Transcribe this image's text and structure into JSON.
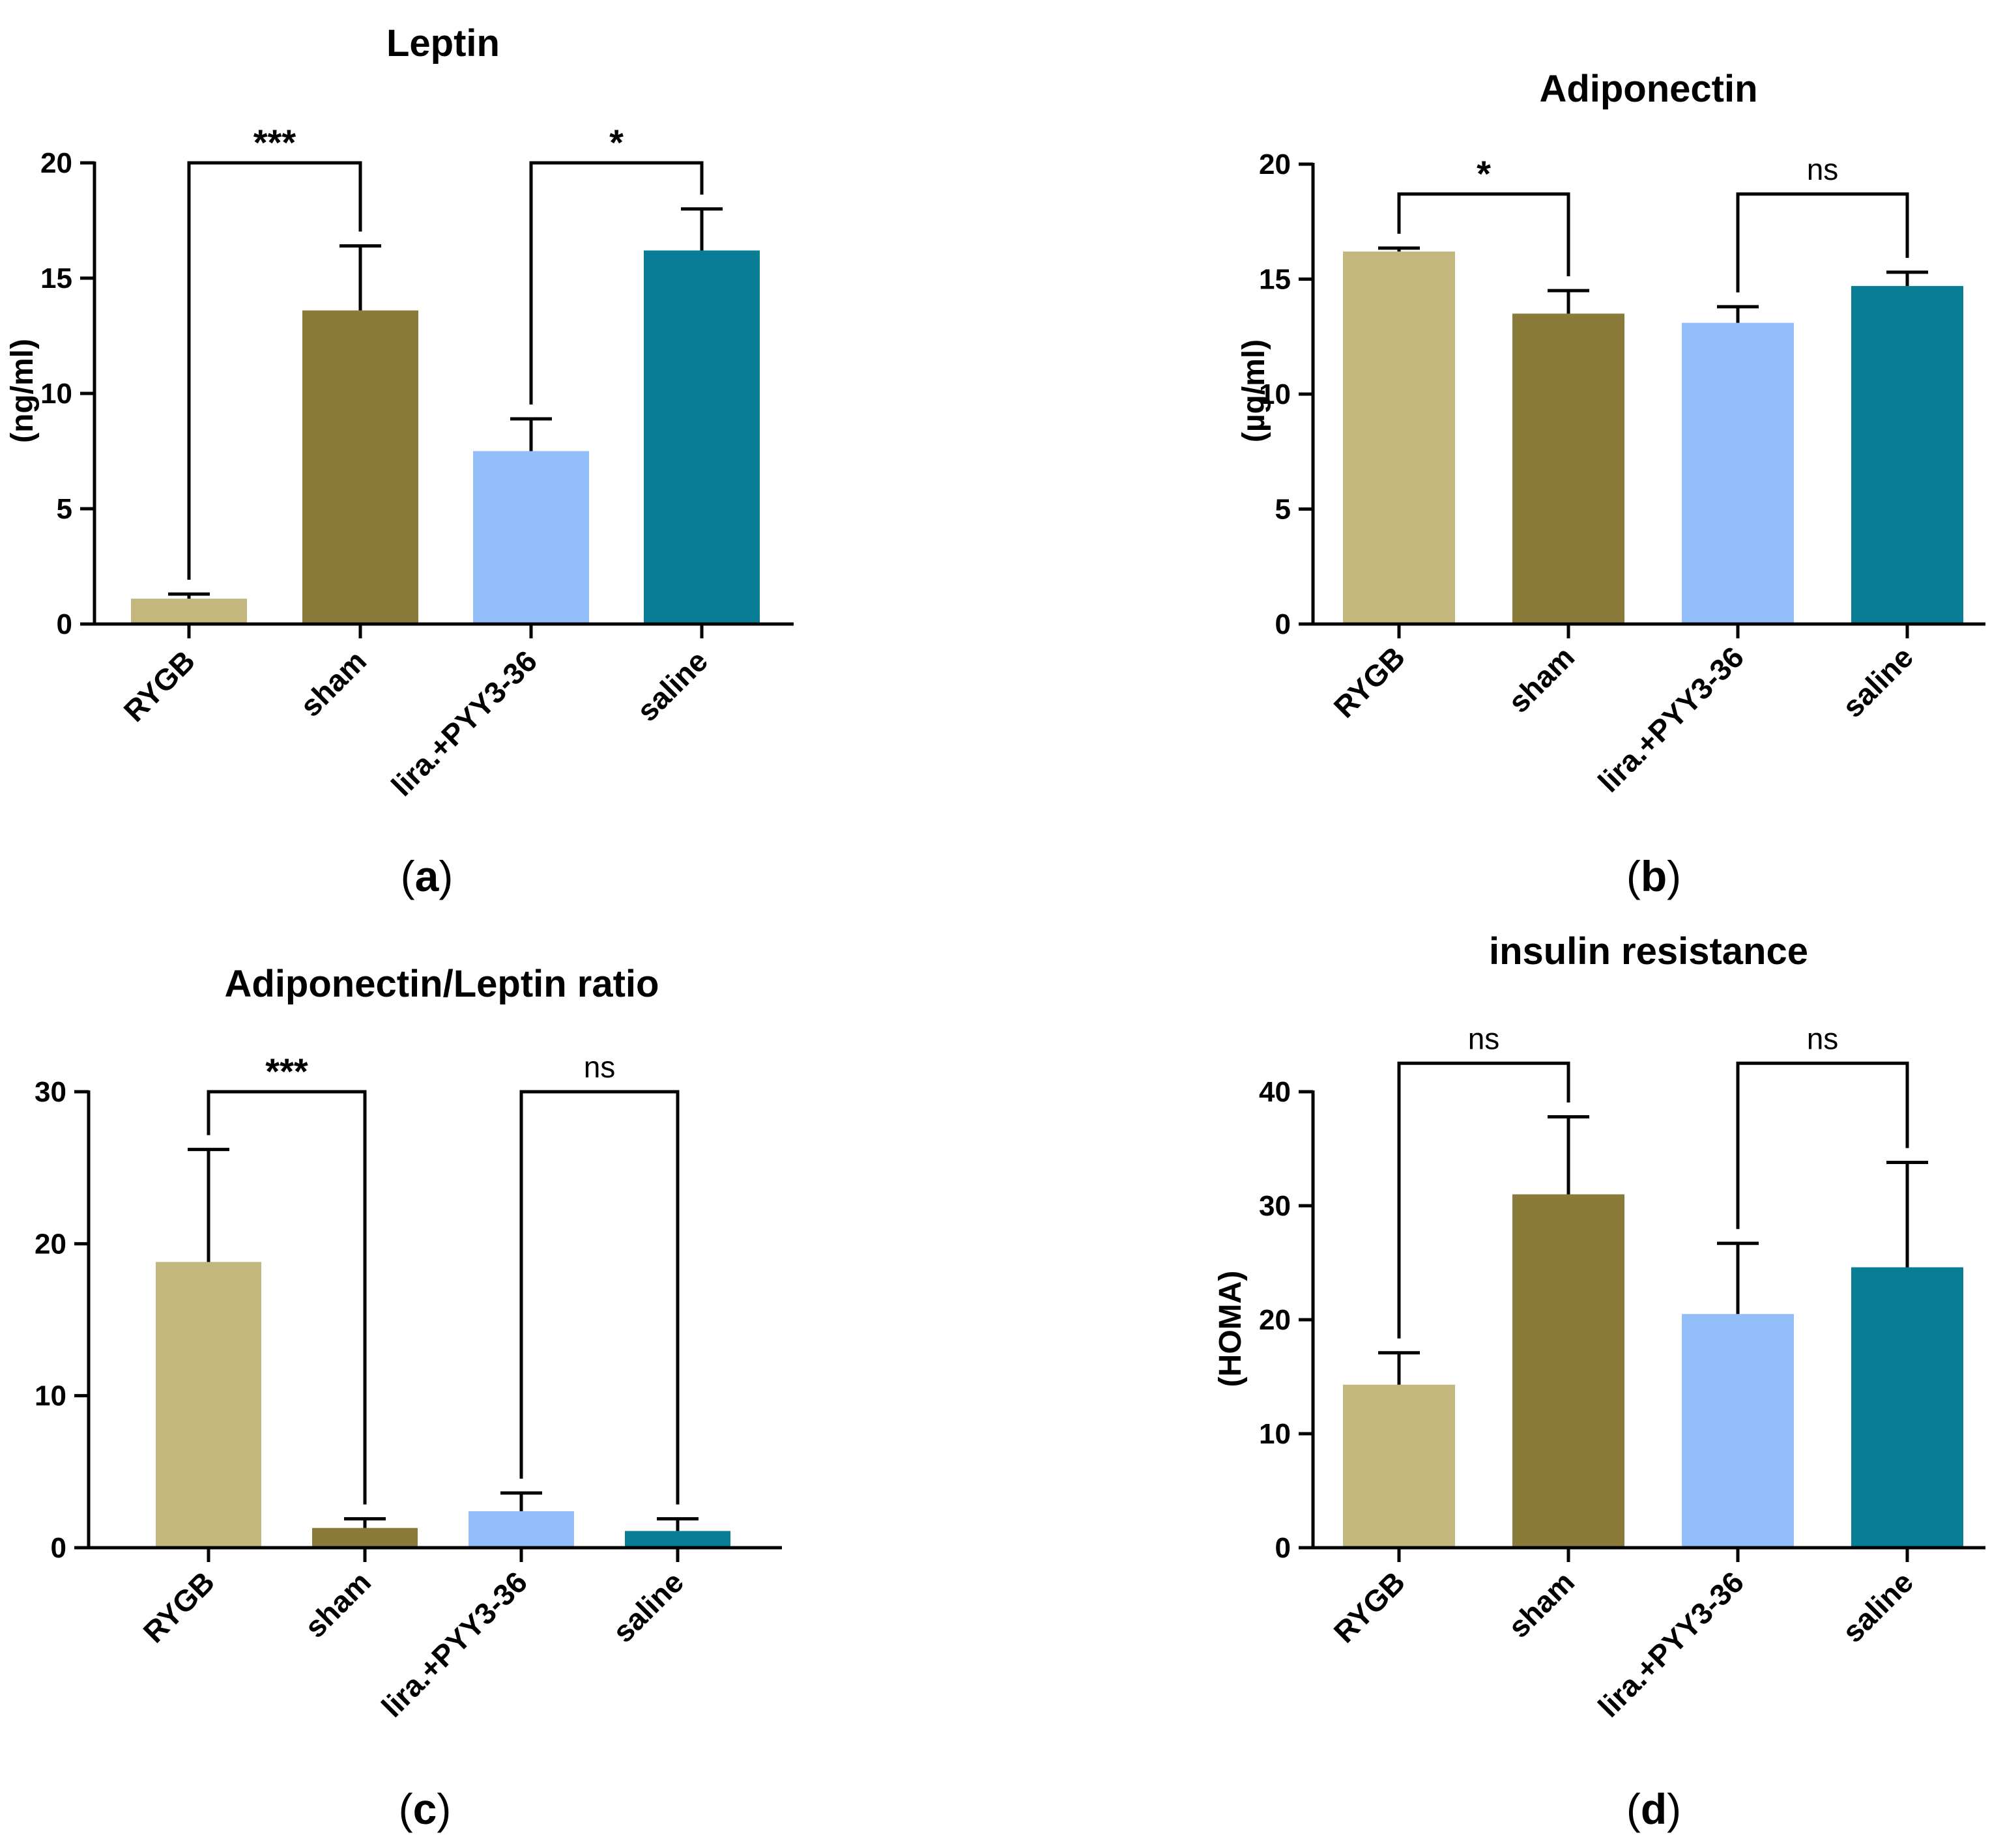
{
  "chart_data": [
    {
      "id": "a",
      "panel_label": "a",
      "type": "bar",
      "title": "Leptin",
      "ylabel": "(ng/ml)",
      "categories": [
        "RYGB",
        "sham",
        "lira.+PYY3-36",
        "saline"
      ],
      "values": [
        1.1,
        13.6,
        7.5,
        16.2
      ],
      "errors": [
        0.2,
        2.8,
        1.4,
        1.8
      ],
      "colors": [
        "#c3b77d",
        "#8b7b3a",
        "#92bffa",
        "#087d95"
      ],
      "ylim": [
        0,
        20
      ],
      "yticks": [
        "0",
        "5",
        "10",
        "15",
        "20"
      ],
      "ytick_values": [
        0,
        5,
        10,
        15,
        20
      ],
      "comparisons": [
        {
          "from": 0,
          "to": 1,
          "label": "***",
          "y": 20
        },
        {
          "from": 2,
          "to": 3,
          "label": "*",
          "y": 20
        }
      ]
    },
    {
      "id": "b",
      "panel_label": "b",
      "type": "bar",
      "title": "Adiponectin",
      "ylabel": "(µg/ml)",
      "categories": [
        "RYGB",
        "sham",
        "lira.+PYY3-36",
        "saline"
      ],
      "values": [
        16.2,
        13.5,
        13.1,
        14.7
      ],
      "errors": [
        0.15,
        1.0,
        0.7,
        0.6
      ],
      "colors": [
        "#c3b77d",
        "#8b7b3a",
        "#92bffa",
        "#087d95"
      ],
      "ylim": [
        0,
        20
      ],
      "yticks": [
        "0",
        "5",
        "10",
        "15",
        "20"
      ],
      "ytick_values": [
        0,
        5,
        10,
        15,
        20
      ],
      "comparisons": [
        {
          "from": 0,
          "to": 1,
          "label": "*",
          "y": 18.7
        },
        {
          "from": 2,
          "to": 3,
          "label": "ns",
          "y": 18.7
        }
      ]
    },
    {
      "id": "c",
      "panel_label": "c",
      "type": "bar",
      "title": "Adiponectin/Leptin ratio",
      "ylabel": "",
      "categories": [
        "RYGB",
        "sham",
        "lira.+PYY3-36",
        "saline"
      ],
      "values": [
        18.8,
        1.3,
        2.4,
        1.1
      ],
      "errors": [
        7.4,
        0.6,
        1.2,
        0.8
      ],
      "colors": [
        "#c3b77d",
        "#8b7b3a",
        "#92bffa",
        "#087d95"
      ],
      "ylim": [
        0,
        30
      ],
      "yticks": [
        "0",
        "10",
        "20",
        "30"
      ],
      "ytick_values": [
        0,
        10,
        20,
        30
      ],
      "comparisons": [
        {
          "from": 0,
          "to": 1,
          "label": "***",
          "y": 30
        },
        {
          "from": 2,
          "to": 3,
          "label": "ns",
          "y": 30
        }
      ]
    },
    {
      "id": "d",
      "panel_label": "d",
      "type": "bar",
      "title": "insulin resistance",
      "ylabel": "(HOMA)",
      "categories": [
        "RYGB",
        "sham",
        "lira.+PYY3-36",
        "saline"
      ],
      "values": [
        14.3,
        31.0,
        20.5,
        24.6
      ],
      "errors": [
        2.8,
        6.8,
        6.2,
        9.2
      ],
      "colors": [
        "#c3b77d",
        "#8b7b3a",
        "#92bffa",
        "#087d95"
      ],
      "ylim": [
        0,
        40
      ],
      "yticks": [
        "0",
        "10",
        "20",
        "30",
        "40"
      ],
      "ytick_values": [
        0,
        10,
        20,
        30,
        40
      ],
      "comparisons": [
        {
          "from": 0,
          "to": 1,
          "label": "ns",
          "y": 42.5
        },
        {
          "from": 2,
          "to": 3,
          "label": "ns",
          "y": 42.5
        }
      ]
    }
  ]
}
